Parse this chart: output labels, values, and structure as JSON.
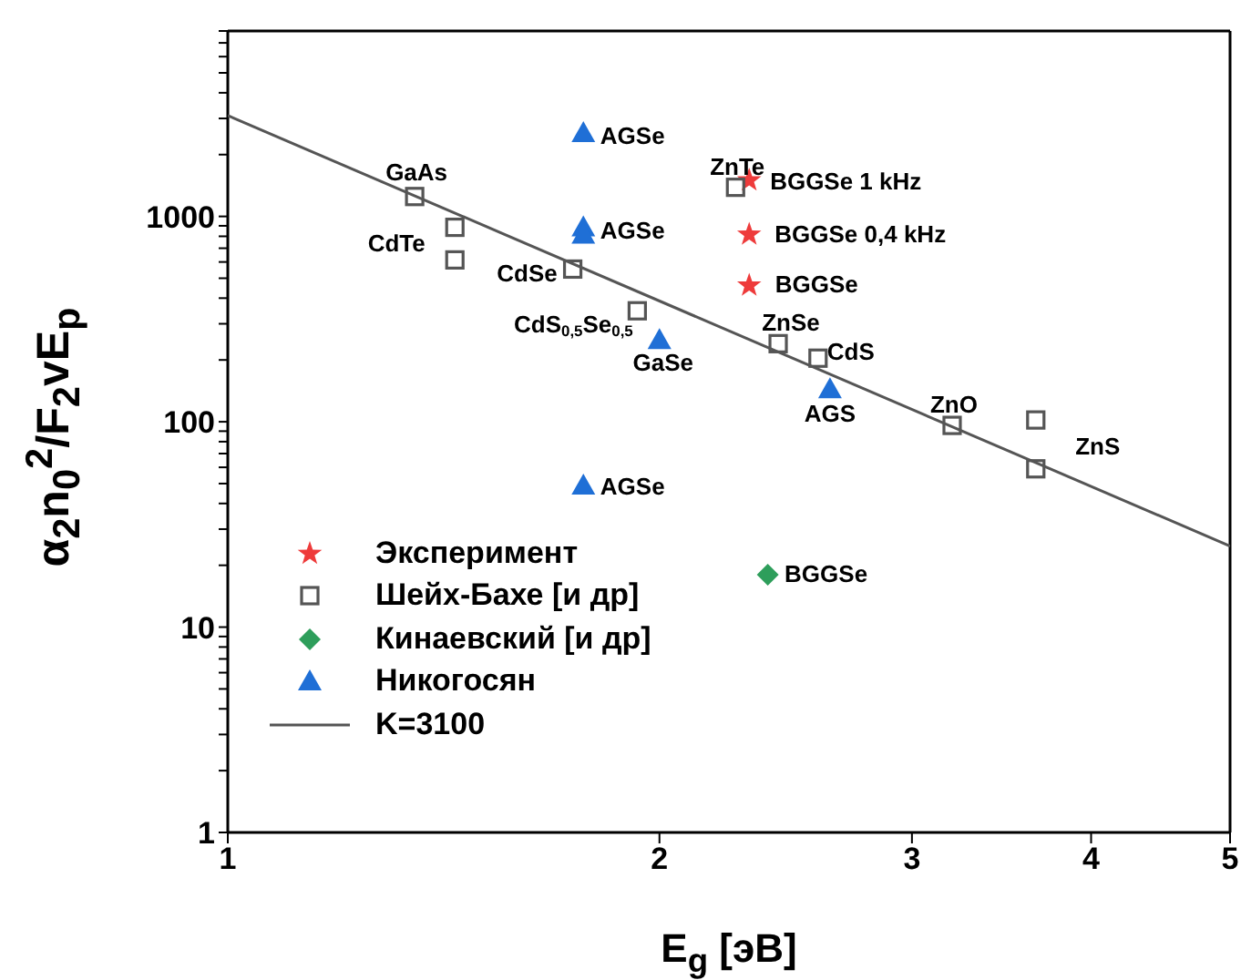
{
  "chart_data": {
    "type": "scatter",
    "xlabel": "E$_{g}$ [эВ]",
    "ylabel": "α$_{2}$n$_{0}$$^{2}$/F$_{2}$vE$_{p}$",
    "log": "xy",
    "legend": "bottom left",
    "xlim": [
      1,
      5
    ],
    "xticks": [
      1,
      2,
      3,
      4,
      5
    ],
    "ylim": [
      1,
      8000
    ],
    "yticks": [
      1,
      {
        "value": 2,
        "label": null
      },
      {
        "value": 3,
        "label": null
      },
      {
        "value": 4,
        "label": null
      },
      {
        "value": 5,
        "label": null
      },
      {
        "value": 6,
        "label": null
      },
      {
        "value": 7,
        "label": null
      },
      {
        "value": 8,
        "label": null
      },
      {
        "value": 9,
        "label": null
      },
      10,
      {
        "value": 20,
        "label": null
      },
      {
        "value": 30,
        "label": null
      },
      {
        "value": 40,
        "label": null
      },
      {
        "value": 50,
        "label": null
      },
      {
        "value": 60,
        "label": null
      },
      {
        "value": 70,
        "label": null
      },
      {
        "value": 80,
        "label": null
      },
      {
        "value": 90,
        "label": null
      },
      100,
      {
        "value": 200,
        "label": null
      },
      {
        "value": 300,
        "label": null
      },
      {
        "value": 400,
        "label": null
      },
      {
        "value": 500,
        "label": null
      },
      {
        "value": 600,
        "label": null
      },
      {
        "value": 700,
        "label": null
      },
      {
        "value": 800,
        "label": null
      },
      {
        "value": 900,
        "label": null
      },
      1000,
      {
        "value": 2000,
        "label": null
      },
      {
        "value": 3000,
        "label": null
      },
      {
        "value": 4000,
        "label": null
      },
      {
        "value": 5000,
        "label": null
      },
      {
        "value": 6000,
        "label": null
      },
      {
        "value": 7000,
        "label": null
      },
      {
        "value": 8000,
        "label": null
      }
    ],
    "series": [
      {
        "name": "Эксперимент",
        "color": "#ee3b3b",
        "marker": "star",
        "x": [
          2.31,
          2.31,
          2.31
        ],
        "values": [
          1500,
          816,
          461
        ]
      },
      {
        "name": "Шейх-Бахе [и др]",
        "color": "#555555",
        "marker": "square",
        "x": [
          1.35,
          1.44,
          1.44,
          1.74,
          1.93,
          2.26,
          2.42,
          2.58,
          3.2,
          3.66,
          3.66
        ],
        "values": [
          1250,
          885,
          614,
          554,
          347,
          1386,
          240,
          204,
          96,
          102,
          59
        ]
      },
      {
        "name": "Кинаевский [и др]",
        "color": "#2e9e5b",
        "marker": "diamond",
        "x": [
          2.38
        ],
        "values": [
          18
        ]
      },
      {
        "name": "Никогосян",
        "color": "#1f6fd6",
        "marker": "triangle",
        "x": [
          1.77,
          1.77,
          1.77,
          2.0,
          2.63,
          1.77
        ],
        "values": [
          2550,
          885,
          816,
          250,
          144,
          49
        ]
      },
      {
        "name": "K=3100",
        "type": "line",
        "color": "#555555",
        "marker": "none",
        "line_style": "solid",
        "x": [
          1,
          5
        ],
        "values": [
          3100,
          24.8
        ]
      }
    ],
    "annotations": [
      {
        "text": "GaAs",
        "x": 1.35,
        "y": 1250
      },
      {
        "text": "CdTe",
        "x": 1.44,
        "y": 885
      },
      {
        "text": "AGSe",
        "x": 1.77,
        "y": 2550
      },
      {
        "text": "AGSe",
        "x": 1.77,
        "y": 885
      },
      {
        "text": "AGSe",
        "x": 1.77,
        "y": 49
      },
      {
        "text": "CdSe",
        "x": 1.74,
        "y": 554
      },
      {
        "text": "CdS$_{0,5}$Se$_{0,5}$",
        "x": 1.93,
        "y": 347
      },
      {
        "text": "GaSe",
        "x": 2.0,
        "y": 250
      },
      {
        "text": "ZnTe",
        "x": 2.26,
        "y": 1386
      },
      {
        "text": "BGGSe 1 kHz",
        "x": 2.31,
        "y": 1500
      },
      {
        "text": "BGGSe 0,4 kHz",
        "x": 2.31,
        "y": 816
      },
      {
        "text": "BGGSe",
        "x": 2.31,
        "y": 461
      },
      {
        "text": "ZnSe",
        "x": 2.42,
        "y": 240
      },
      {
        "text": "CdS",
        "x": 2.58,
        "y": 204
      },
      {
        "text": "AGS",
        "x": 2.63,
        "y": 144
      },
      {
        "text": "ZnO",
        "x": 3.2,
        "y": 96
      },
      {
        "text": "ZnS",
        "x": 3.66,
        "y": 102
      },
      {
        "text": "BGGSe",
        "x": 2.38,
        "y": 18
      }
    ]
  }
}
